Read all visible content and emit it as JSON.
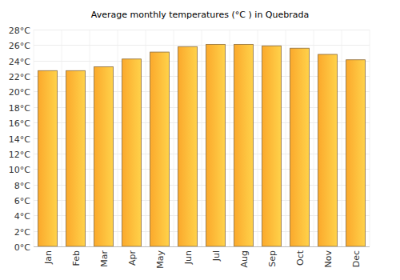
{
  "chart_data": {
    "type": "bar",
    "title": "Average monthly temperatures (°C ) in Quebrada",
    "categories": [
      "Jan",
      "Feb",
      "Mar",
      "Apr",
      "May",
      "Jun",
      "Jul",
      "Aug",
      "Sep",
      "Oct",
      "Nov",
      "Dec"
    ],
    "values": [
      22.7,
      22.7,
      23.2,
      24.2,
      25.1,
      25.8,
      26.1,
      26.1,
      25.9,
      25.6,
      24.8,
      24.1
    ],
    "color": "#fba92c",
    "ylim": [
      0,
      28
    ],
    "yticks": [
      {
        "value": 0,
        "label": "0°C"
      },
      {
        "value": 2,
        "label": "2°C"
      },
      {
        "value": 4,
        "label": "4°C"
      },
      {
        "value": 6,
        "label": "6°C"
      },
      {
        "value": 8,
        "label": "8°C"
      },
      {
        "value": 10,
        "label": "10°C"
      },
      {
        "value": 12,
        "label": "12°C"
      },
      {
        "value": 14,
        "label": "14°C"
      },
      {
        "value": 16,
        "label": "16°C"
      },
      {
        "value": 18,
        "label": "18°C"
      },
      {
        "value": 20,
        "label": "20°C"
      },
      {
        "value": 22,
        "label": "22°C"
      },
      {
        "value": 24,
        "label": "24°C"
      },
      {
        "value": 26,
        "label": "26°C"
      },
      {
        "value": 28,
        "label": "28°C"
      }
    ],
    "grid": true
  }
}
